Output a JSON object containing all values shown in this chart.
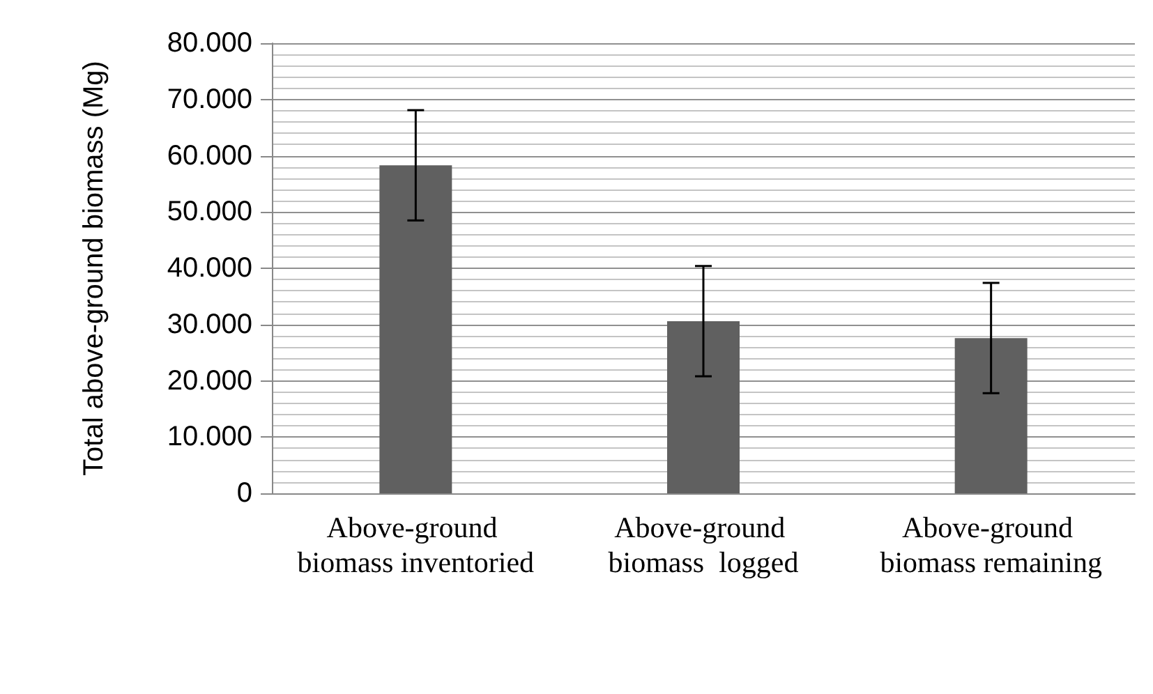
{
  "chart_data": {
    "type": "bar",
    "ylabel": "Total above-ground biomass (Mg)",
    "categories": [
      "Above-ground biomass inventoried",
      "Above-ground biomass  logged",
      "Above-ground biomass remaining"
    ],
    "values": [
      58300,
      30600,
      27600
    ],
    "errors": [
      9800,
      9800,
      9800
    ],
    "color": "#606060",
    "ylim": [
      0,
      80000
    ],
    "yticks": [
      {
        "value": 0,
        "label": "0"
      },
      {
        "value": 2000,
        "label": null
      },
      {
        "value": 4000,
        "label": null
      },
      {
        "value": 6000,
        "label": null
      },
      {
        "value": 8000,
        "label": null
      },
      {
        "value": 10000,
        "label": "10.000"
      },
      {
        "value": 12000,
        "label": null
      },
      {
        "value": 14000,
        "label": null
      },
      {
        "value": 16000,
        "label": null
      },
      {
        "value": 18000,
        "label": null
      },
      {
        "value": 20000,
        "label": "20.000"
      },
      {
        "value": 22000,
        "label": null
      },
      {
        "value": 24000,
        "label": null
      },
      {
        "value": 26000,
        "label": null
      },
      {
        "value": 28000,
        "label": null
      },
      {
        "value": 30000,
        "label": "30.000"
      },
      {
        "value": 32000,
        "label": null
      },
      {
        "value": 34000,
        "label": null
      },
      {
        "value": 36000,
        "label": null
      },
      {
        "value": 38000,
        "label": null
      },
      {
        "value": 40000,
        "label": "40.000"
      },
      {
        "value": 42000,
        "label": null
      },
      {
        "value": 44000,
        "label": null
      },
      {
        "value": 46000,
        "label": null
      },
      {
        "value": 48000,
        "label": null
      },
      {
        "value": 50000,
        "label": "50.000"
      },
      {
        "value": 52000,
        "label": null
      },
      {
        "value": 54000,
        "label": null
      },
      {
        "value": 56000,
        "label": null
      },
      {
        "value": 58000,
        "label": null
      },
      {
        "value": 60000,
        "label": "60.000"
      },
      {
        "value": 62000,
        "label": null
      },
      {
        "value": 64000,
        "label": null
      },
      {
        "value": 66000,
        "label": null
      },
      {
        "value": 68000,
        "label": null
      },
      {
        "value": 70000,
        "label": "70.000"
      },
      {
        "value": 72000,
        "label": null
      },
      {
        "value": 74000,
        "label": null
      },
      {
        "value": 76000,
        "label": null
      },
      {
        "value": 78000,
        "label": null
      },
      {
        "value": 80000,
        "label": "80.000"
      }
    ],
    "grid": true
  }
}
